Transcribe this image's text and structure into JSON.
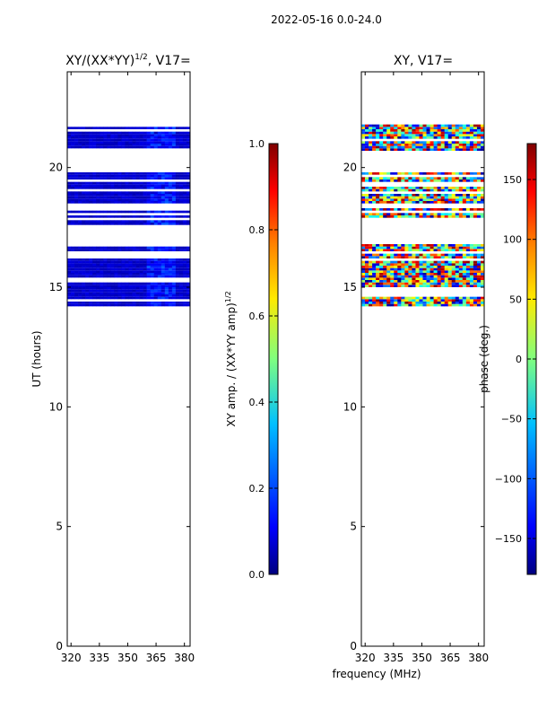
{
  "suptitle": "2022-05-16 0.0-24.0",
  "shared_xlabel": "frequency (MHz)",
  "colors": {
    "jet": [
      "#00007f",
      "#0000ff",
      "#007fff",
      "#00ffff",
      "#7fff7f",
      "#ffff00",
      "#ff7f00",
      "#ff0000",
      "#7f0000"
    ]
  },
  "chart_data": [
    {
      "type": "heatmap",
      "title": "XY/(XX*YY)",
      "title_sup": "1/2",
      "title_tail": ", V17=",
      "xlabel": "",
      "ylabel": "UT (hours)",
      "xlim": [
        318,
        383
      ],
      "ylim": [
        0,
        24
      ],
      "xticks": [
        320,
        335,
        350,
        365,
        380
      ],
      "yticks": [
        0,
        5,
        10,
        15,
        20
      ],
      "colormap": "jet",
      "color_variable": "amplitude",
      "observed_bands_hours": [
        [
          14.2,
          15.9
        ],
        [
          15.9,
          16.8
        ],
        [
          17.6,
          17.8
        ],
        [
          17.9,
          19.8
        ],
        [
          20.7,
          21.8
        ]
      ],
      "values_description_range": [
        0.0,
        0.1
      ]
    },
    {
      "type": "heatmap",
      "title": "XY, V17=",
      "xlabel": "frequency (MHz)",
      "ylabel": "",
      "xlim": [
        318,
        383
      ],
      "ylim": [
        0,
        24
      ],
      "xticks": [
        320,
        335,
        350,
        365,
        380
      ],
      "yticks": [
        0,
        5,
        10,
        15,
        20
      ],
      "colormap": "jet",
      "color_variable": "phase",
      "observed_bands_hours": [
        [
          14.2,
          15.9
        ],
        [
          15.9,
          16.8
        ],
        [
          17.6,
          17.8
        ],
        [
          17.9,
          19.8
        ],
        [
          20.7,
          21.8
        ]
      ],
      "values_description_range": [
        -180,
        180
      ]
    }
  ],
  "colorbars": [
    {
      "label": "XY amp. / (XX*YY amp)",
      "label_sup": "1/2",
      "range": [
        0.0,
        1.0
      ],
      "ticks": [
        "0.0",
        "0.2",
        "0.4",
        "0.6",
        "0.8",
        "1.0"
      ]
    },
    {
      "label": "phase (deg.)",
      "range": [
        -180,
        180
      ],
      "ticks": [
        "−150",
        "−100",
        "−50",
        "0",
        "50",
        "100",
        "150"
      ]
    }
  ]
}
